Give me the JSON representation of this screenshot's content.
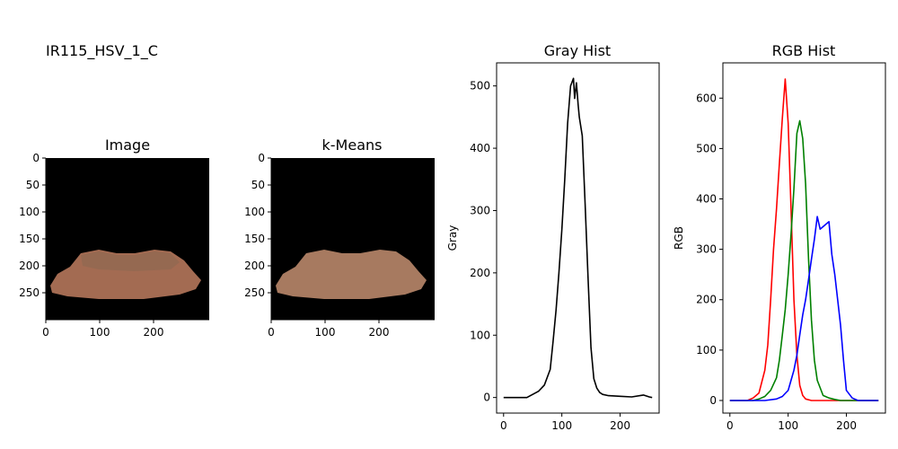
{
  "figure": {
    "title": "IR115_HSV_1_C"
  },
  "panels": {
    "image": {
      "title": "Image",
      "xticks": [
        "0",
        "100",
        "200"
      ],
      "yticks": [
        "0",
        "50",
        "100",
        "150",
        "200",
        "250"
      ]
    },
    "kmeans": {
      "title": "k-Means",
      "xticks": [
        "0",
        "100",
        "200"
      ],
      "yticks": [
        "0",
        "50",
        "100",
        "150",
        "200",
        "250"
      ]
    }
  },
  "chart_data": [
    {
      "type": "line",
      "title": "Gray Hist",
      "xlabel": "",
      "ylabel": "Gray",
      "xlim": [
        -12,
        267
      ],
      "ylim": [
        -25,
        537
      ],
      "xticks": [
        0,
        100,
        200
      ],
      "yticks": [
        0,
        100,
        200,
        300,
        400,
        500
      ],
      "series": [
        {
          "color": "#000000",
          "x": [
            0,
            40,
            50,
            60,
            70,
            80,
            85,
            90,
            95,
            100,
            105,
            110,
            115,
            120,
            122,
            125,
            128,
            130,
            135,
            140,
            145,
            150,
            155,
            160,
            165,
            170,
            180,
            200,
            220,
            240,
            250,
            255
          ],
          "y": [
            0,
            0,
            5,
            10,
            20,
            45,
            90,
            140,
            200,
            270,
            350,
            440,
            500,
            512,
            480,
            505,
            470,
            450,
            420,
            310,
            190,
            80,
            30,
            15,
            8,
            5,
            3,
            2,
            1,
            4,
            1,
            0
          ]
        }
      ]
    },
    {
      "type": "line",
      "title": "RGB Hist",
      "xlabel": "",
      "ylabel": "RGB",
      "xlim": [
        -12,
        267
      ],
      "ylim": [
        -25,
        670
      ],
      "xticks": [
        0,
        100,
        200
      ],
      "yticks": [
        0,
        100,
        200,
        300,
        400,
        500,
        600
      ],
      "series": [
        {
          "color": "#ff0000",
          "x": [
            0,
            30,
            40,
            50,
            60,
            65,
            70,
            75,
            80,
            85,
            90,
            95,
            100,
            105,
            110,
            115,
            120,
            125,
            130,
            140,
            150,
            255
          ],
          "y": [
            0,
            0,
            5,
            15,
            60,
            110,
            200,
            300,
            380,
            470,
            560,
            638,
            550,
            380,
            200,
            90,
            30,
            10,
            3,
            0,
            0,
            0
          ]
        },
        {
          "color": "#008000",
          "x": [
            0,
            40,
            50,
            60,
            70,
            80,
            85,
            90,
            95,
            100,
            105,
            110,
            115,
            120,
            125,
            130,
            135,
            140,
            145,
            150,
            160,
            170,
            180,
            190,
            200,
            255
          ],
          "y": [
            0,
            0,
            3,
            8,
            20,
            45,
            80,
            130,
            180,
            250,
            330,
            420,
            530,
            555,
            520,
            430,
            280,
            160,
            80,
            40,
            10,
            5,
            2,
            0,
            0,
            0
          ]
        },
        {
          "color": "#0000ff",
          "x": [
            0,
            60,
            80,
            90,
            100,
            105,
            110,
            115,
            120,
            125,
            130,
            135,
            140,
            145,
            150,
            155,
            160,
            165,
            170,
            175,
            180,
            185,
            190,
            195,
            200,
            210,
            220,
            255
          ],
          "y": [
            0,
            0,
            3,
            8,
            20,
            40,
            60,
            90,
            130,
            170,
            200,
            240,
            280,
            320,
            365,
            340,
            345,
            350,
            355,
            290,
            250,
            200,
            150,
            80,
            20,
            5,
            0,
            0
          ]
        }
      ]
    }
  ]
}
